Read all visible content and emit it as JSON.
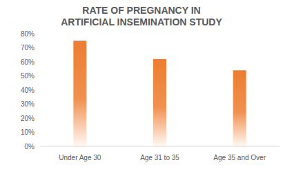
{
  "chart_data": {
    "type": "bar",
    "title": "RATE OF PREGNANCY IN ARTIFICIAL INSEMINATION STUDY",
    "categories": [
      "Under Age 30",
      "Age 31 to 35",
      "Age 35 and Over"
    ],
    "values": [
      75,
      62,
      54
    ],
    "color": "#ed7d31",
    "ylim": [
      0,
      80
    ],
    "yticks": [
      {
        "value": 0,
        "label": "0%"
      },
      {
        "value": 10,
        "label": "10%"
      },
      {
        "value": 20,
        "label": "20%"
      },
      {
        "value": 30,
        "label": "30%"
      },
      {
        "value": 40,
        "label": "40%"
      },
      {
        "value": 50,
        "label": "50%"
      },
      {
        "value": 60,
        "label": "60%"
      },
      {
        "value": 70,
        "label": "70%"
      },
      {
        "value": 80,
        "label": "80%"
      }
    ],
    "grid": false
  }
}
